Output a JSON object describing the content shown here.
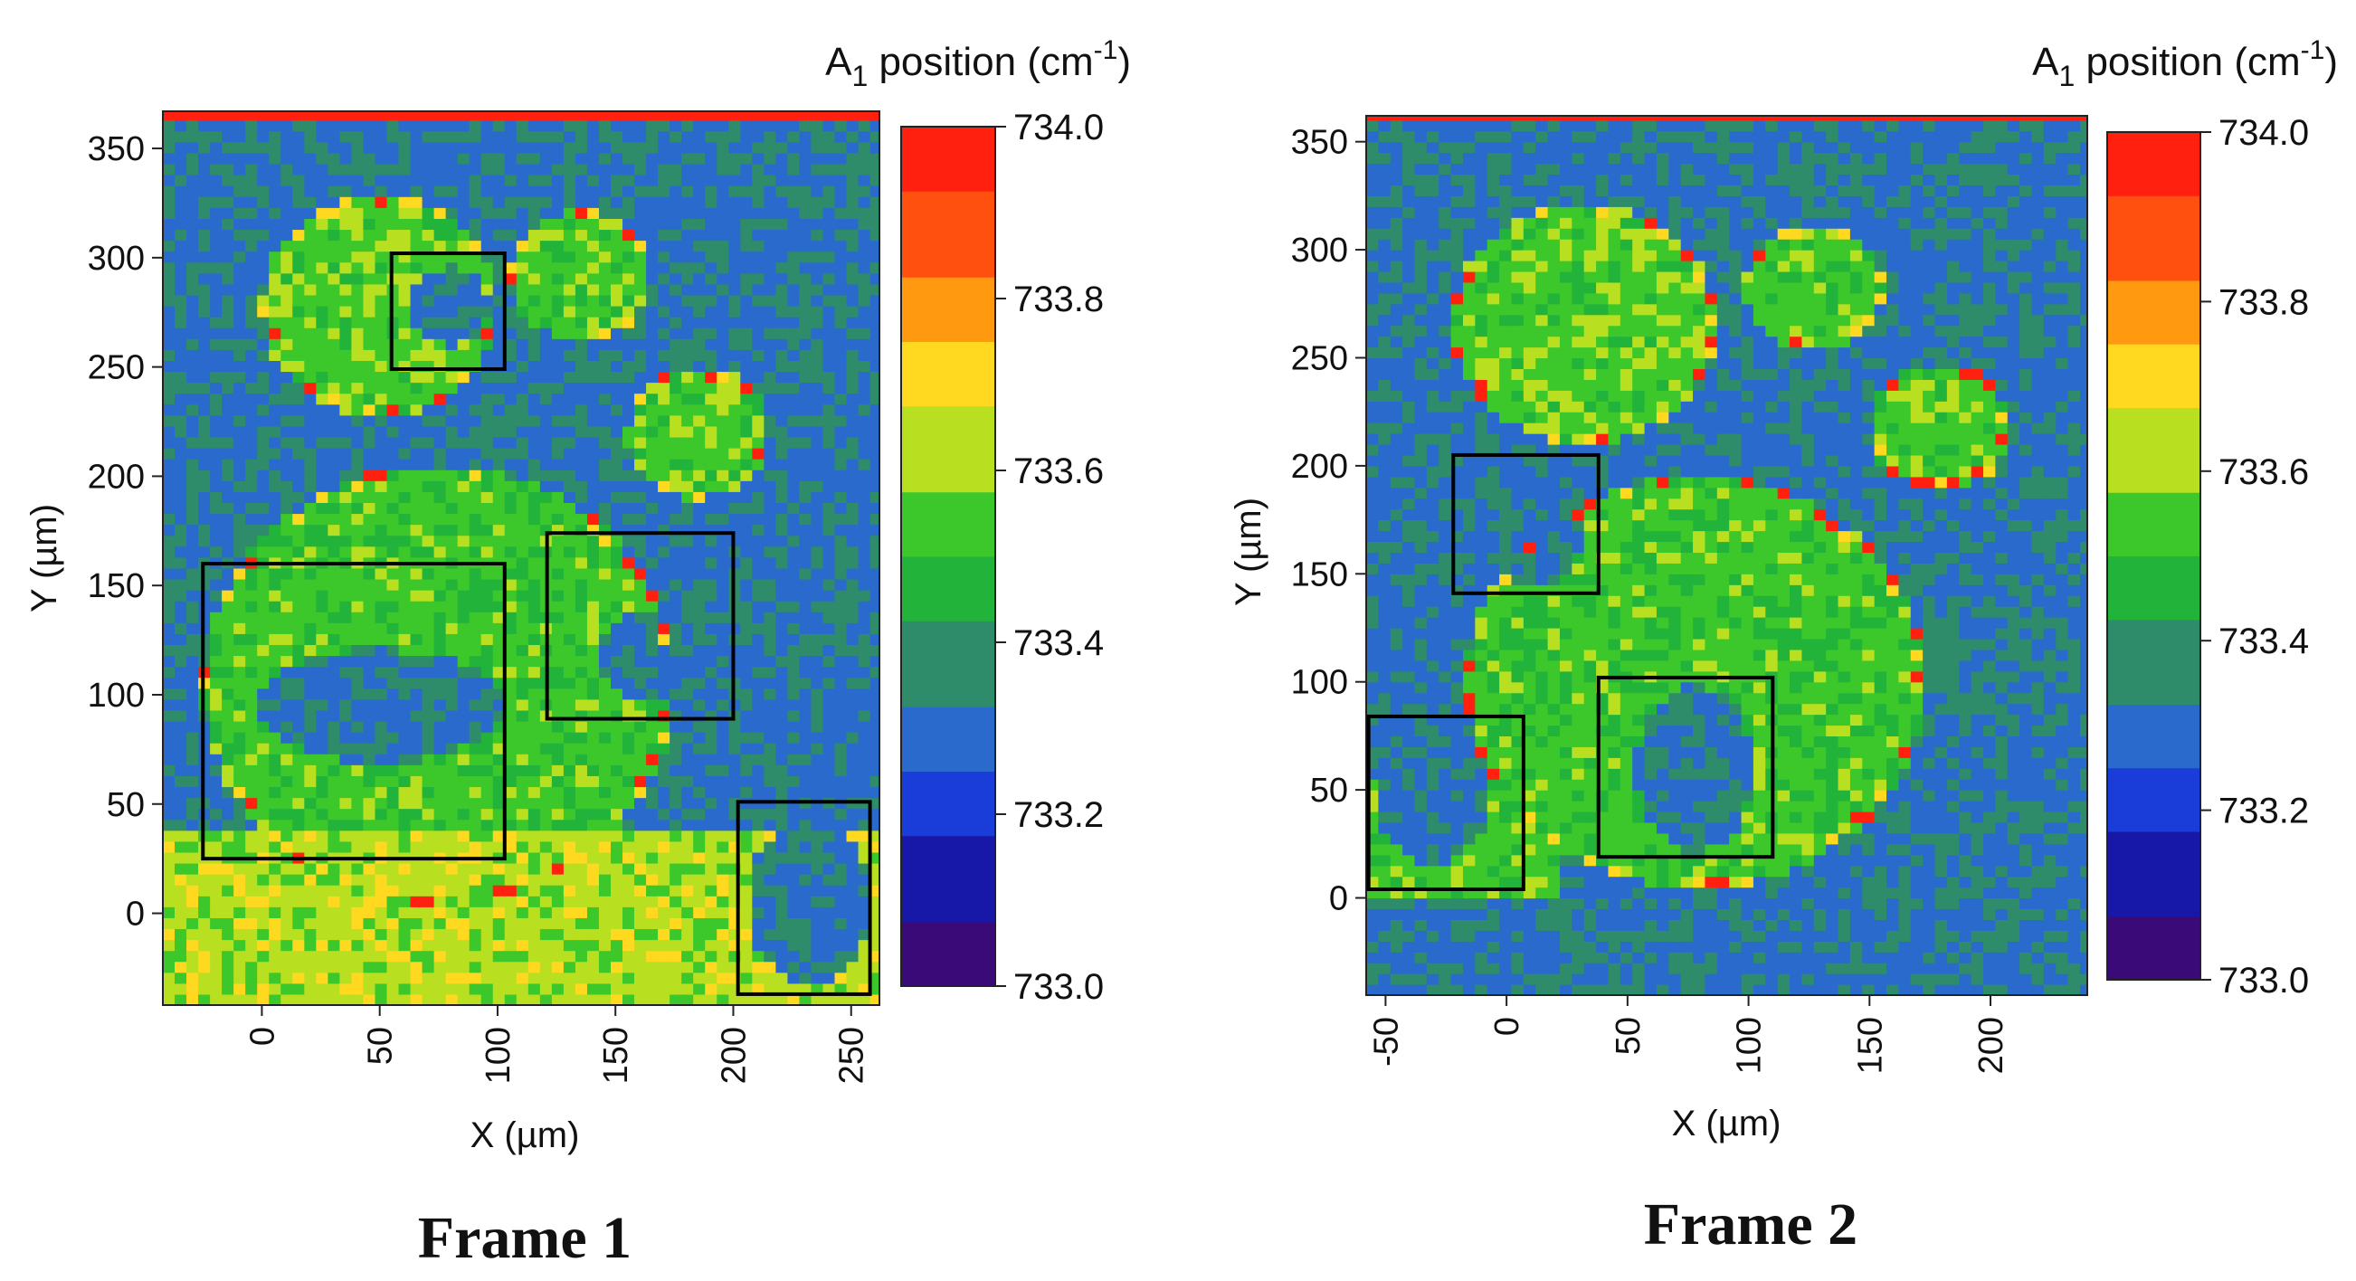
{
  "chart_data": [
    {
      "type": "heatmap",
      "caption": "Frame 1",
      "xlabel": "X (µm)",
      "ylabel": "Y (µm)",
      "xlim": [
        -42,
        262
      ],
      "ylim": [
        -42,
        367
      ],
      "xticks": [
        0,
        50,
        100,
        150,
        200,
        250
      ],
      "yticks": [
        0,
        50,
        100,
        150,
        200,
        250,
        300,
        350
      ],
      "colorbar": {
        "title_main": "A",
        "title_sub": "1",
        "title_rest": " position (cm",
        "title_exp": "-1",
        "title_close": ")",
        "min": 733.0,
        "max": 734.0,
        "tick_labels": [
          "734.0",
          "733.8",
          "733.6",
          "733.4",
          "733.2",
          "733.0"
        ],
        "tick_values": [
          734.0,
          733.8,
          733.6,
          733.4,
          733.2,
          733.0
        ]
      },
      "background_value": 733.32,
      "regions": [
        {
          "shape": "circle",
          "cx": 50,
          "cy": 278,
          "r": 50,
          "value": 733.55
        },
        {
          "shape": "circle",
          "cx": 135,
          "cy": 292,
          "r": 30,
          "value": 733.55
        },
        {
          "shape": "circle",
          "cx": 185,
          "cy": 220,
          "r": 30,
          "value": 733.55
        },
        {
          "shape": "circle",
          "cx": 75,
          "cy": 105,
          "r": 100,
          "value": 733.53
        },
        {
          "shape": "band",
          "y0": -42,
          "y1": 40,
          "value": 733.62
        },
        {
          "shape": "ellipse",
          "cx": 50,
          "cy": 95,
          "rx": 52,
          "ry": 26,
          "value": 733.32
        },
        {
          "shape": "ellipse",
          "cx": 165,
          "cy": 118,
          "rx": 22,
          "ry": 20,
          "value": 733.32
        },
        {
          "shape": "ellipse",
          "cx": 80,
          "cy": 278,
          "rx": 16,
          "ry": 18,
          "value": 733.32
        },
        {
          "shape": "ellipse",
          "cx": 232,
          "cy": 5,
          "rx": 26,
          "ry": 38,
          "value": 733.32
        }
      ],
      "boxes": [
        {
          "x0": -25,
          "x1": 103,
          "y0": 25,
          "y1": 160
        },
        {
          "x0": 121,
          "x1": 200,
          "y0": 89,
          "y1": 174
        },
        {
          "x0": 55,
          "x1": 103,
          "y0": 249,
          "y1": 302
        },
        {
          "x0": 202,
          "x1": 258,
          "y0": -37,
          "y1": 51
        }
      ]
    },
    {
      "type": "heatmap",
      "caption": "Frame 2",
      "xlabel": "X (µm)",
      "ylabel": "Y (µm)",
      "xlim": [
        -58,
        240
      ],
      "ylim": [
        -45,
        362
      ],
      "xticks": [
        -50,
        0,
        50,
        100,
        150,
        200
      ],
      "yticks": [
        0,
        50,
        100,
        150,
        200,
        250,
        300,
        350
      ],
      "colorbar": {
        "title_main": "A",
        "title_sub": "1",
        "title_rest": " position (cm",
        "title_exp": "-1",
        "title_close": ")",
        "min": 733.0,
        "max": 734.0,
        "tick_labels": [
          "734.0",
          "733.8",
          "733.6",
          "733.4",
          "733.2",
          "733.0"
        ],
        "tick_values": [
          734.0,
          733.8,
          733.6,
          733.4,
          733.2,
          733.0
        ]
      },
      "background_value": 733.32,
      "regions": [
        {
          "shape": "circle",
          "cx": 32,
          "cy": 266,
          "r": 55,
          "value": 733.55
        },
        {
          "shape": "circle",
          "cx": 127,
          "cy": 282,
          "r": 29,
          "value": 733.55
        },
        {
          "shape": "circle",
          "cx": 179,
          "cy": 218,
          "r": 29,
          "value": 733.55
        },
        {
          "shape": "circle",
          "cx": 78,
          "cy": 100,
          "r": 95,
          "value": 733.53
        },
        {
          "shape": "band",
          "y0": 0,
          "y1": 55,
          "x0": -58,
          "x1": 20,
          "value": 733.55
        },
        {
          "shape": "ellipse",
          "cx": 78,
          "cy": 60,
          "rx": 24,
          "ry": 38,
          "value": 733.32
        },
        {
          "shape": "ellipse",
          "cx": 8,
          "cy": 172,
          "rx": 24,
          "ry": 28,
          "value": 733.32
        },
        {
          "shape": "ellipse",
          "cx": -30,
          "cy": 48,
          "rx": 24,
          "ry": 32,
          "value": 733.32
        }
      ],
      "boxes": [
        {
          "x0": -22,
          "x1": 38,
          "y0": 141,
          "y1": 205
        },
        {
          "x0": -57,
          "x1": 7,
          "y0": 4,
          "y1": 84
        },
        {
          "x0": 38,
          "x1": 110,
          "y0": 19,
          "y1": 102
        }
      ]
    }
  ],
  "colormap": [
    "#3a0a78",
    "#1818a8",
    "#1a3cd8",
    "#2a6acc",
    "#2e8c6a",
    "#22b43a",
    "#3cc82a",
    "#b8e020",
    "#ffd820",
    "#ff9a10",
    "#ff5010",
    "#ff2010"
  ]
}
